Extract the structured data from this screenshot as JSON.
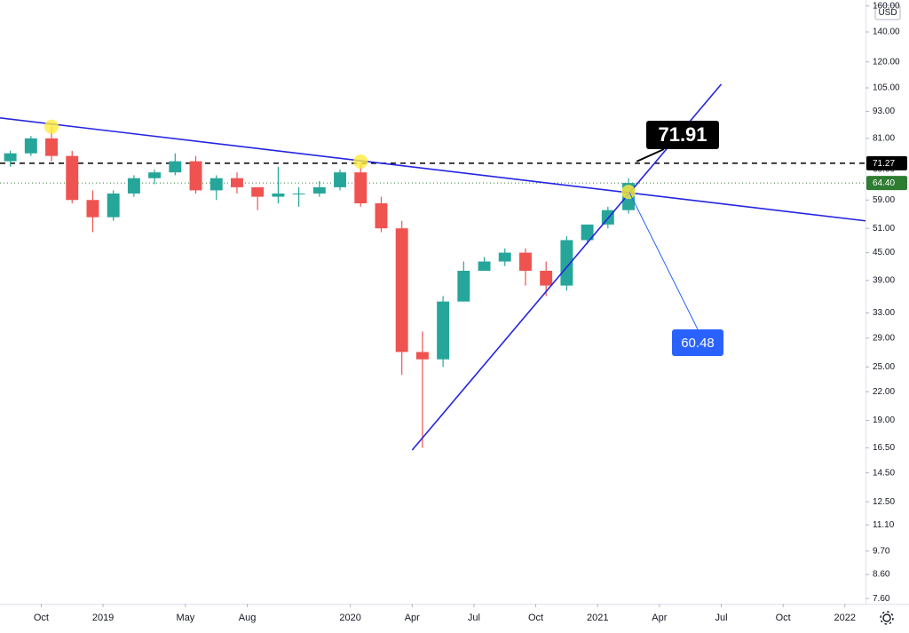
{
  "chart_data": {
    "type": "candlestick",
    "axis_label": "USD",
    "log_scale": true,
    "grid": false,
    "up_color": "#26a69a",
    "down_color": "#ef5350",
    "x": [
      "2018-08",
      "2018-09",
      "2018-10",
      "2018-11",
      "2018-12",
      "2019-01",
      "2019-02",
      "2019-03",
      "2019-04",
      "2019-05",
      "2019-06",
      "2019-07",
      "2019-08",
      "2019-09",
      "2019-10",
      "2019-11",
      "2019-12",
      "2020-01",
      "2020-02",
      "2020-03",
      "2020-04",
      "2020-05",
      "2020-06",
      "2020-07",
      "2020-08",
      "2020-09",
      "2020-10",
      "2020-11",
      "2020-12",
      "2021-01",
      "2021-02"
    ],
    "open": [
      72,
      75,
      81,
      74,
      59,
      54,
      61,
      66,
      68,
      72,
      62,
      66,
      63,
      60,
      61,
      61,
      63,
      68,
      58,
      51,
      27,
      26,
      35,
      41,
      43,
      45,
      41,
      38,
      48,
      52,
      56
    ],
    "high": [
      76,
      82,
      86,
      76,
      62,
      62,
      67,
      69,
      75,
      74,
      67,
      68,
      63,
      70,
      63,
      65,
      69,
      71,
      60,
      53,
      30,
      36,
      43,
      44,
      46,
      46,
      43,
      49,
      52,
      57,
      66
    ],
    "low": [
      70,
      74,
      72,
      58,
      50,
      53,
      60,
      64,
      67,
      61,
      59,
      61,
      56,
      58,
      57,
      60,
      62,
      57,
      50,
      24,
      16.5,
      25,
      35,
      41,
      42,
      38,
      36,
      37,
      47,
      51,
      55
    ],
    "close": [
      75,
      81,
      74,
      59,
      54,
      61,
      66,
      68,
      72,
      62,
      66,
      63,
      60,
      61,
      61,
      63,
      68,
      58,
      51,
      27,
      26,
      35,
      41,
      43,
      45,
      41,
      38,
      48,
      52,
      56,
      64.4
    ],
    "xlim": [
      "2018-08",
      "2022-02"
    ],
    "xticks": [
      {
        "value": "2018-10",
        "label": "Oct"
      },
      {
        "value": "2019-01",
        "label": "2019"
      },
      {
        "value": "2019-05",
        "label": "May"
      },
      {
        "value": "2019-08",
        "label": "Aug"
      },
      {
        "value": "2020-01",
        "label": "2020"
      },
      {
        "value": "2020-04",
        "label": "Apr"
      },
      {
        "value": "2020-07",
        "label": "Jul"
      },
      {
        "value": "2020-10",
        "label": "Oct"
      },
      {
        "value": "2021-01",
        "label": "2021"
      },
      {
        "value": "2021-04",
        "label": "Apr"
      },
      {
        "value": "2021-07",
        "label": "Jul"
      },
      {
        "value": "2021-10",
        "label": "Oct"
      },
      {
        "value": "2022-01",
        "label": "2022"
      }
    ],
    "ylim": [
      7.4,
      165
    ],
    "yticks": [
      {
        "value": 160,
        "label": "160.00"
      },
      {
        "value": 140,
        "label": "140.00"
      },
      {
        "value": 120,
        "label": "120.00"
      },
      {
        "value": 105,
        "label": "105.00"
      },
      {
        "value": 93,
        "label": "93.00"
      },
      {
        "value": 81,
        "label": "81.00"
      },
      {
        "value": 69,
        "label": "69.00"
      },
      {
        "value": 59,
        "label": "59.00"
      },
      {
        "value": 51,
        "label": "51.00"
      },
      {
        "value": 45,
        "label": "45.00"
      },
      {
        "value": 39,
        "label": "39.00"
      },
      {
        "value": 33,
        "label": "33.00"
      },
      {
        "value": 29,
        "label": "29.00"
      },
      {
        "value": 25,
        "label": "25.00"
      },
      {
        "value": 22,
        "label": "22.00"
      },
      {
        "value": 19,
        "label": "19.00"
      },
      {
        "value": 16.5,
        "label": "16.50"
      },
      {
        "value": 14.5,
        "label": "14.50"
      },
      {
        "value": 12.5,
        "label": "12.50"
      },
      {
        "value": 11.1,
        "label": "11.10"
      },
      {
        "value": 9.7,
        "label": "9.70"
      },
      {
        "value": 8.6,
        "label": "8.60"
      },
      {
        "value": 7.6,
        "label": "7.60"
      }
    ],
    "trendlines": [
      {
        "from": [
          "2018-08",
          90
        ],
        "to": [
          "2022-02",
          53
        ],
        "color": "#2424e0"
      },
      {
        "from": [
          "2020-04",
          16.3
        ],
        "to": [
          "2021-07",
          107
        ],
        "color": "#2424e0"
      }
    ],
    "touch_points": [
      [
        "2018-10",
        86
      ],
      [
        "2020-01",
        71.9
      ],
      [
        "2021-02",
        61.5
      ]
    ],
    "price_lines": [
      {
        "value": 71.27,
        "style": "dashed",
        "color": "#000000"
      },
      {
        "value": 64.4,
        "value_label": "64.40",
        "style": "dotted",
        "color": "#2e7d32"
      }
    ],
    "callouts": [
      71.91,
      60.48
    ]
  }
}
